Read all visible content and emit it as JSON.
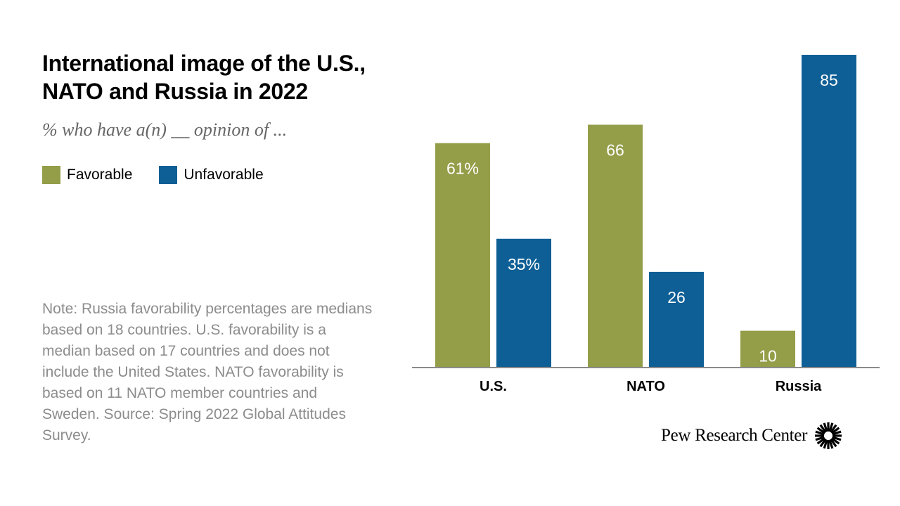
{
  "title": "International image of the U.S., NATO and Russia in 2022",
  "subtitle": "% who have a(n) __ opinion of ...",
  "legend": {
    "favorable": "Favorable",
    "unfavorable": "Unfavorable"
  },
  "colors": {
    "favorable": "#949d48",
    "unfavorable": "#0e5f96",
    "axis": "#8a8a8a"
  },
  "note": "Note: Russia favorability percentages are medians based on 18 countries. U.S. favorability is a median based on 17 countries and does not include the United States. NATO favorability is based on 11 NATO member countries and Sweden. Source: Spring 2022 Global Attitudes Survey.",
  "branding": {
    "org_name": "Pew Research Center",
    "logo_icon": "sunburst-icon"
  },
  "chart_data": {
    "type": "bar",
    "title": "International image of the U.S., NATO and Russia in 2022",
    "subtitle": "% who have a(n) __ opinion of ...",
    "categories": [
      "U.S.",
      "NATO",
      "Russia"
    ],
    "series": [
      {
        "name": "Favorable",
        "values": [
          61,
          66,
          10
        ],
        "labels": [
          "61%",
          "66",
          "10"
        ]
      },
      {
        "name": "Unfavorable",
        "values": [
          35,
          26,
          85
        ],
        "labels": [
          "35%",
          "26",
          "85"
        ]
      }
    ],
    "xlabel": "",
    "ylabel": "",
    "ylim": [
      0,
      85
    ],
    "grid": false,
    "legend_position": "top-left"
  }
}
